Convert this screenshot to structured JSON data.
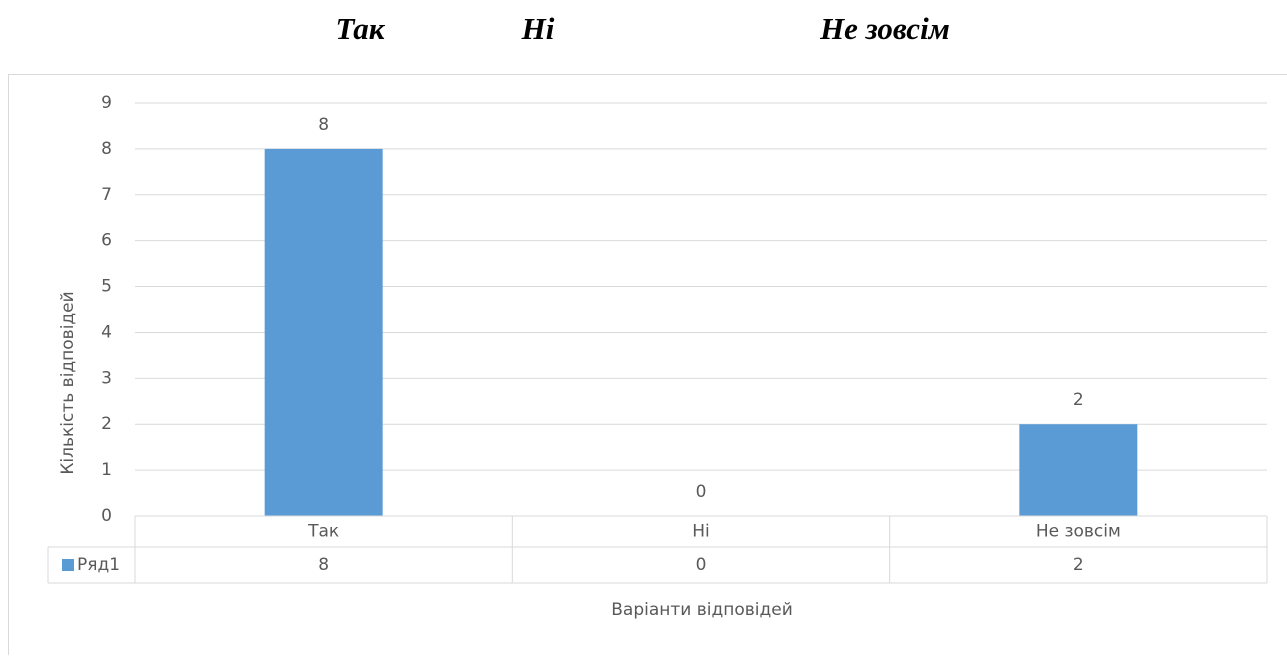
{
  "heading_words": [
    "Так",
    "Ні",
    "Не зовсім"
  ],
  "chart_data": {
    "type": "bar",
    "categories": [
      "Так",
      "Ні",
      "Не зовсім"
    ],
    "series": [
      {
        "name": "Ряд1",
        "color": "#5b9bd5",
        "values": [
          8,
          0,
          2
        ]
      }
    ],
    "ylim": [
      0,
      9
    ],
    "yticks": [
      0,
      1,
      2,
      3,
      4,
      5,
      6,
      7,
      8,
      9
    ],
    "grid": true,
    "xlabel": "Варіанти відповідей",
    "ylabel": "Кількість відповідей",
    "data_table": true
  }
}
